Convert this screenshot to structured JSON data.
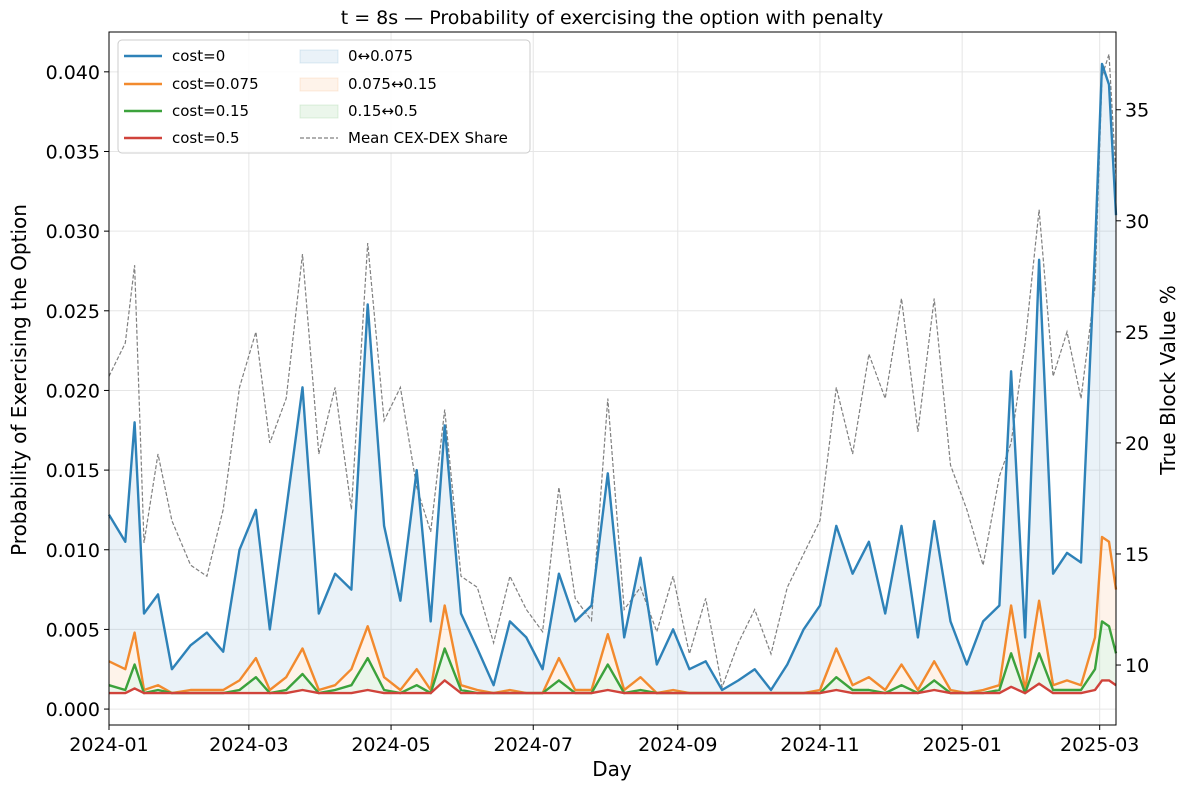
{
  "chart_data": {
    "type": "line",
    "title": "t = 8s — Probability of exercising the option with penalty",
    "xlabel": "Day",
    "ylabel": "Probability of Exercising the Option",
    "y2label": "True Block Value %",
    "xlim": [
      "2024-01-01",
      "2025-03-08"
    ],
    "ylim": [
      -0.001,
      0.0425
    ],
    "y2lim": [
      7.3,
      38.5
    ],
    "x_ticks": [
      "2024-01",
      "2024-03",
      "2024-05",
      "2024-07",
      "2024-09",
      "2024-11",
      "2025-01",
      "2025-03"
    ],
    "y_ticks": [
      "0.000",
      "0.005",
      "0.010",
      "0.015",
      "0.020",
      "0.025",
      "0.030",
      "0.035",
      "0.040"
    ],
    "y2_ticks": [
      "10",
      "15",
      "20",
      "25",
      "30",
      "35"
    ],
    "grid": true,
    "legend_position": "top-left",
    "x": [
      "2024-01-01",
      "2024-01-08",
      "2024-01-12",
      "2024-01-16",
      "2024-01-22",
      "2024-01-28",
      "2024-02-05",
      "2024-02-12",
      "2024-02-19",
      "2024-02-26",
      "2024-03-04",
      "2024-03-10",
      "2024-03-17",
      "2024-03-24",
      "2024-03-31",
      "2024-04-07",
      "2024-04-14",
      "2024-04-21",
      "2024-04-28",
      "2024-05-05",
      "2024-05-12",
      "2024-05-18",
      "2024-05-24",
      "2024-05-31",
      "2024-06-07",
      "2024-06-14",
      "2024-06-21",
      "2024-06-28",
      "2024-07-05",
      "2024-07-12",
      "2024-07-19",
      "2024-07-26",
      "2024-08-02",
      "2024-08-09",
      "2024-08-16",
      "2024-08-23",
      "2024-08-30",
      "2024-09-06",
      "2024-09-13",
      "2024-09-20",
      "2024-09-27",
      "2024-10-04",
      "2024-10-11",
      "2024-10-18",
      "2024-10-25",
      "2024-11-01",
      "2024-11-08",
      "2024-11-15",
      "2024-11-22",
      "2024-11-29",
      "2024-12-06",
      "2024-12-13",
      "2024-12-20",
      "2024-12-27",
      "2025-01-03",
      "2025-01-10",
      "2025-01-17",
      "2025-01-22",
      "2025-01-28",
      "2025-02-03",
      "2025-02-09",
      "2025-02-15",
      "2025-02-21",
      "2025-02-27",
      "2025-03-02",
      "2025-03-05",
      "2025-03-08"
    ],
    "series": [
      {
        "name": "cost=0",
        "color": "#2e82b8",
        "values": [
          0.0122,
          0.0105,
          0.018,
          0.006,
          0.0072,
          0.0025,
          0.004,
          0.0048,
          0.0036,
          0.01,
          0.0125,
          0.005,
          0.0125,
          0.0202,
          0.006,
          0.0085,
          0.0075,
          0.0254,
          0.0115,
          0.0068,
          0.015,
          0.0055,
          0.0178,
          0.006,
          0.0038,
          0.0015,
          0.0055,
          0.0045,
          0.0025,
          0.0085,
          0.0055,
          0.0065,
          0.0148,
          0.0045,
          0.0095,
          0.0028,
          0.005,
          0.0025,
          0.003,
          0.0012,
          0.0018,
          0.0025,
          0.0012,
          0.0028,
          0.005,
          0.0065,
          0.0115,
          0.0085,
          0.0105,
          0.006,
          0.0115,
          0.0045,
          0.0118,
          0.0055,
          0.0028,
          0.0055,
          0.0065,
          0.0212,
          0.0045,
          0.0282,
          0.0085,
          0.0098,
          0.0092,
          0.0288,
          0.0405,
          0.0392,
          0.031
        ]
      },
      {
        "name": "cost=0.075",
        "color": "#f28a2e",
        "values": [
          0.003,
          0.0025,
          0.0048,
          0.0012,
          0.0015,
          0.001,
          0.0012,
          0.0012,
          0.0012,
          0.0018,
          0.0032,
          0.0012,
          0.002,
          0.0038,
          0.0012,
          0.0015,
          0.0025,
          0.0052,
          0.002,
          0.0012,
          0.0025,
          0.0012,
          0.0065,
          0.0015,
          0.0012,
          0.001,
          0.0012,
          0.001,
          0.001,
          0.0032,
          0.0012,
          0.0012,
          0.0047,
          0.0012,
          0.002,
          0.001,
          0.0012,
          0.001,
          0.001,
          0.001,
          0.001,
          0.001,
          0.001,
          0.001,
          0.001,
          0.0012,
          0.0038,
          0.0015,
          0.002,
          0.0012,
          0.0028,
          0.0012,
          0.003,
          0.0012,
          0.001,
          0.0012,
          0.0015,
          0.0065,
          0.0012,
          0.0068,
          0.0015,
          0.0018,
          0.0015,
          0.0045,
          0.0108,
          0.0105,
          0.0075
        ]
      },
      {
        "name": "cost=0.15",
        "color": "#3ca23c",
        "values": [
          0.0015,
          0.0012,
          0.0028,
          0.001,
          0.0012,
          0.001,
          0.001,
          0.001,
          0.001,
          0.0012,
          0.002,
          0.001,
          0.0012,
          0.0022,
          0.001,
          0.0012,
          0.0015,
          0.0032,
          0.0012,
          0.001,
          0.0015,
          0.001,
          0.0038,
          0.0012,
          0.001,
          0.001,
          0.001,
          0.001,
          0.001,
          0.0018,
          0.001,
          0.001,
          0.0028,
          0.001,
          0.0012,
          0.001,
          0.001,
          0.001,
          0.001,
          0.001,
          0.001,
          0.001,
          0.001,
          0.001,
          0.001,
          0.001,
          0.002,
          0.0012,
          0.0012,
          0.001,
          0.0015,
          0.001,
          0.0018,
          0.001,
          0.001,
          0.001,
          0.0012,
          0.0035,
          0.001,
          0.0035,
          0.0012,
          0.0012,
          0.0012,
          0.0025,
          0.0055,
          0.0052,
          0.0035
        ]
      },
      {
        "name": "cost=0.5",
        "color": "#d0433b",
        "values": [
          0.001,
          0.001,
          0.0013,
          0.001,
          0.001,
          0.001,
          0.001,
          0.001,
          0.001,
          0.001,
          0.001,
          0.001,
          0.001,
          0.0012,
          0.001,
          0.001,
          0.001,
          0.0012,
          0.001,
          0.001,
          0.001,
          0.001,
          0.0018,
          0.001,
          0.001,
          0.001,
          0.001,
          0.001,
          0.001,
          0.001,
          0.001,
          0.001,
          0.0012,
          0.001,
          0.001,
          0.001,
          0.001,
          0.001,
          0.001,
          0.001,
          0.001,
          0.001,
          0.001,
          0.001,
          0.001,
          0.001,
          0.0012,
          0.001,
          0.001,
          0.001,
          0.001,
          0.001,
          0.0012,
          0.001,
          0.001,
          0.001,
          0.001,
          0.0014,
          0.001,
          0.0016,
          0.001,
          0.001,
          0.001,
          0.0012,
          0.0018,
          0.0018,
          0.0015
        ]
      }
    ],
    "bands": [
      {
        "name": "0↔0.075",
        "lower": "cost=0.075",
        "upper": "cost=0",
        "color": "#2e82b8"
      },
      {
        "name": "0.075↔0.15",
        "lower": "cost=0.15",
        "upper": "cost=0.075",
        "color": "#f28a2e"
      },
      {
        "name": "0.15↔0.5",
        "lower": "cost=0.5",
        "upper": "cost=0.15",
        "color": "#3ca23c"
      }
    ],
    "secondary_series": {
      "name": "Mean CEX-DEX Share",
      "color": "#808080",
      "axis": "right",
      "values": [
        23,
        24.5,
        28,
        15.5,
        19.5,
        16.5,
        14.5,
        14,
        17,
        22.5,
        25,
        20,
        22,
        28.5,
        19.5,
        22.5,
        17,
        29,
        21,
        22.5,
        18,
        16,
        21.5,
        14,
        13.5,
        11,
        14,
        12.5,
        11.5,
        18,
        13,
        12,
        22,
        12.5,
        13.5,
        11.5,
        14,
        10.5,
        13,
        9,
        11,
        12.5,
        10.5,
        13.5,
        15,
        16.5,
        22.5,
        19.5,
        24,
        22,
        26.5,
        20.5,
        26.5,
        19,
        17,
        14.5,
        18.5,
        20,
        24.5,
        30.5,
        23,
        25,
        22,
        27,
        36.5,
        37.5,
        32
      ]
    }
  }
}
